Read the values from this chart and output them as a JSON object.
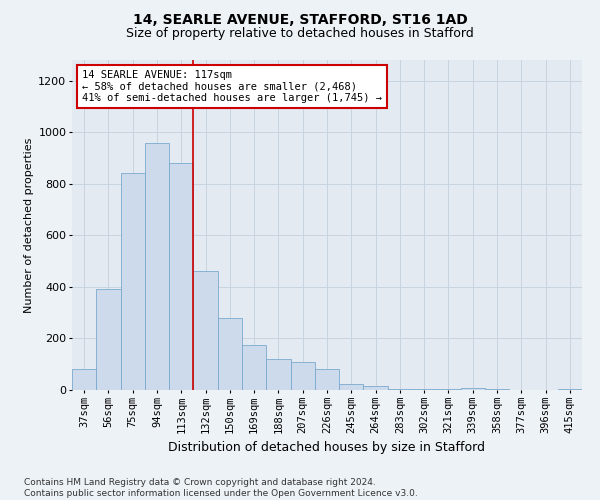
{
  "title1": "14, SEARLE AVENUE, STAFFORD, ST16 1AD",
  "title2": "Size of property relative to detached houses in Stafford",
  "xlabel": "Distribution of detached houses by size in Stafford",
  "ylabel": "Number of detached properties",
  "categories": [
    "37sqm",
    "56sqm",
    "75sqm",
    "94sqm",
    "113sqm",
    "132sqm",
    "150sqm",
    "169sqm",
    "188sqm",
    "207sqm",
    "226sqm",
    "245sqm",
    "264sqm",
    "283sqm",
    "302sqm",
    "321sqm",
    "339sqm",
    "358sqm",
    "377sqm",
    "396sqm",
    "415sqm"
  ],
  "values": [
    80,
    390,
    840,
    960,
    880,
    460,
    280,
    175,
    120,
    110,
    80,
    25,
    15,
    5,
    3,
    2,
    8,
    2,
    1,
    1,
    5
  ],
  "bar_color": "#ccdaeb",
  "bar_edge_color": "#7aaace",
  "ref_bar_index": 4,
  "annotation_line1": "14 SEARLE AVENUE: 117sqm",
  "annotation_line2": "← 58% of detached houses are smaller (2,468)",
  "annotation_line3": "41% of semi-detached houses are larger (1,745) →",
  "annotation_box_facecolor": "#ffffff",
  "annotation_box_edgecolor": "#cc0000",
  "red_line_color": "#cc0000",
  "ylim": [
    0,
    1280
  ],
  "yticks": [
    0,
    200,
    400,
    600,
    800,
    1000,
    1200
  ],
  "grid_color": "#c8d4e0",
  "footer1": "Contains HM Land Registry data © Crown copyright and database right 2024.",
  "footer2": "Contains public sector information licensed under the Open Government Licence v3.0.",
  "fig_facecolor": "#edf2f7",
  "plot_facecolor": "#e4eaf2",
  "title1_fontsize": 10,
  "title2_fontsize": 9,
  "ylabel_fontsize": 8,
  "xlabel_fontsize": 9,
  "tick_fontsize": 7.5,
  "ytick_fontsize": 8,
  "footer_fontsize": 6.5,
  "annot_fontsize": 7.5
}
